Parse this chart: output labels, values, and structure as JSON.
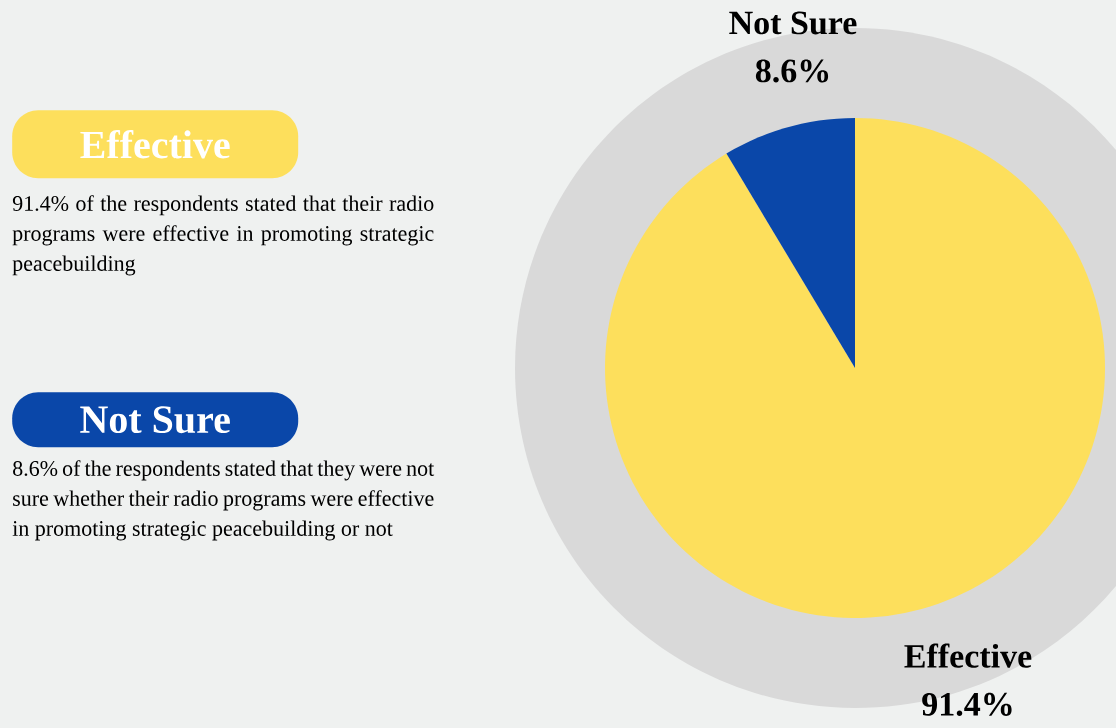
{
  "chart_data": {
    "type": "pie",
    "categories": [
      "Effective",
      "Not Sure"
    ],
    "values": [
      91.4,
      8.6
    ],
    "colors": [
      "#fddf5c",
      "#0a47a9"
    ],
    "value_labels": [
      "91.4%",
      "8.6%"
    ],
    "annotations": [
      "91.4% of the respondents stated that their radio programs were effective in promoting strategic peacebuilding",
      "8.6% of the respondents stated that they were not sure whether their radio programs were effective in promoting strategic peacebuilding or not"
    ]
  }
}
